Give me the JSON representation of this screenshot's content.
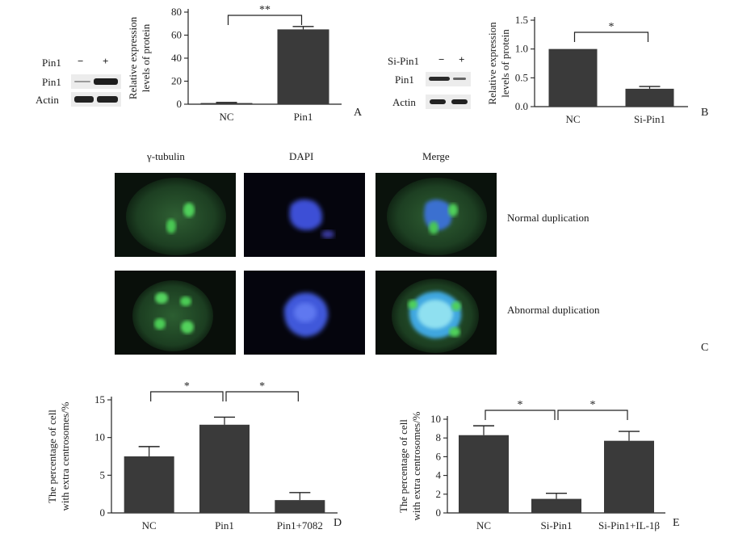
{
  "panel_letters": {
    "a": "A",
    "b": "B",
    "c": "C",
    "d": "D",
    "e": "E"
  },
  "western_a": {
    "treatment_label": "Pin1",
    "minus": "−",
    "plus": "+",
    "rows": [
      "Pin1",
      "Actin"
    ]
  },
  "western_b": {
    "treatment_label": "Si-Pin1",
    "minus": "−",
    "plus": "+",
    "rows": [
      "Pin1",
      "Actin"
    ]
  },
  "microscopy": {
    "columns": [
      "γ-tubulin",
      "DAPI",
      "Merge"
    ],
    "rows": [
      "Normal duplication",
      "Abnormal duplication"
    ]
  },
  "chart_data": [
    {
      "id": "A",
      "type": "bar",
      "categories": [
        "NC",
        "Pin1"
      ],
      "values": [
        1,
        65
      ],
      "errors": [
        0.5,
        2.5
      ],
      "ylabel": [
        "Relative expression",
        "levels of protein"
      ],
      "ylim": [
        0,
        80
      ],
      "yticks": [
        0,
        20,
        40,
        60,
        80
      ],
      "significance": [
        {
          "from": 0,
          "to": 1,
          "label": "**"
        }
      ],
      "color": "#3a3a3a"
    },
    {
      "id": "B",
      "type": "bar",
      "categories": [
        "NC",
        "Si-Pin1"
      ],
      "values": [
        1.0,
        0.31
      ],
      "errors": [
        0.0,
        0.04
      ],
      "ylabel": [
        "Relative expression",
        "levels of protein"
      ],
      "ylim": [
        0,
        1.5
      ],
      "yticks": [
        0.0,
        0.5,
        1.0,
        1.5
      ],
      "yticklabels": [
        "0.0",
        "0.5",
        "1.0",
        "1.5"
      ],
      "significance": [
        {
          "from": 0,
          "to": 1,
          "label": "*"
        }
      ],
      "color": "#3a3a3a"
    },
    {
      "id": "D",
      "type": "bar",
      "categories": [
        "NC",
        "Pin1",
        "Pin1+7082"
      ],
      "values": [
        7.5,
        11.7,
        1.7
      ],
      "errors": [
        1.3,
        1.0,
        1.0
      ],
      "ylabel": [
        "The percentage of cell",
        "with extra centrosomes/%"
      ],
      "ylim": [
        0,
        15
      ],
      "yticks": [
        0,
        5,
        10,
        15
      ],
      "significance": [
        {
          "from": 0,
          "to": 1,
          "label": "*"
        },
        {
          "from": 1,
          "to": 2,
          "label": "*"
        }
      ],
      "color": "#3a3a3a"
    },
    {
      "id": "E",
      "type": "bar",
      "categories": [
        "NC",
        "Si-Pin1",
        "Si-Pin1+IL-1β"
      ],
      "values": [
        8.3,
        1.5,
        7.7
      ],
      "errors": [
        1.0,
        0.6,
        1.0
      ],
      "ylabel": [
        "The percentage of cell",
        "with extra centrosomes/%"
      ],
      "ylim": [
        0,
        10
      ],
      "yticks": [
        0,
        2,
        4,
        6,
        8,
        10
      ],
      "significance": [
        {
          "from": 0,
          "to": 1,
          "label": "*"
        },
        {
          "from": 1,
          "to": 2,
          "label": "*"
        }
      ],
      "color": "#3a3a3a"
    }
  ]
}
